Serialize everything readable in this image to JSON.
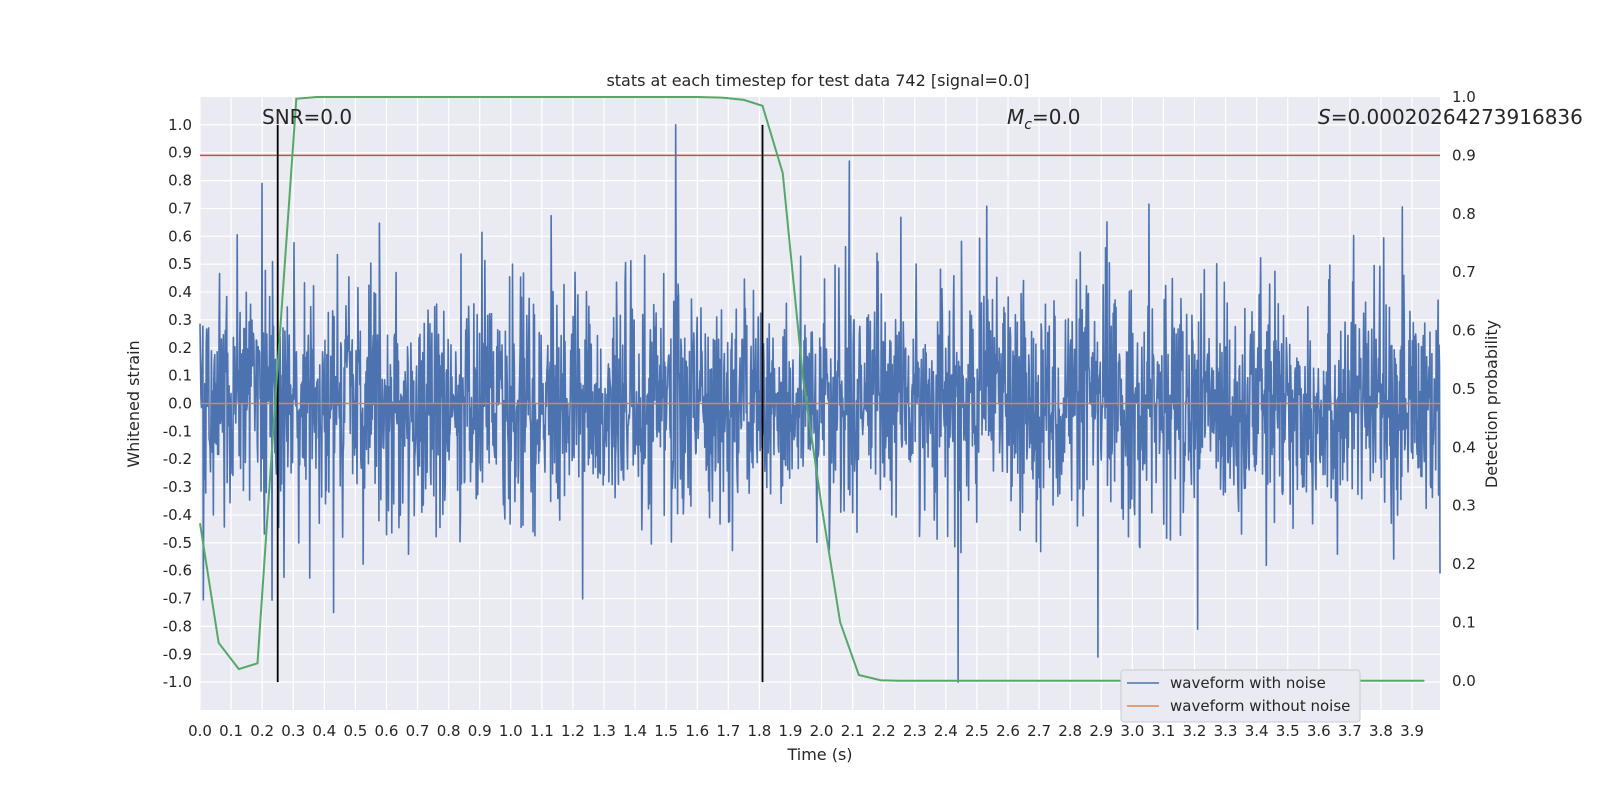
{
  "chart_data": {
    "type": "line",
    "title": "stats at each timestep for test data 742 [signal=0.0]",
    "xlabel": "Time (s)",
    "ylabel": "Whitened strain",
    "y2label": "Detection probability",
    "xlim": [
      0.0,
      3.99
    ],
    "ylim": [
      -1.1,
      1.1
    ],
    "y2lim": [
      -0.05,
      1.0
    ],
    "x_ticks": [
      "0.0",
      "0.1",
      "0.2",
      "0.3",
      "0.4",
      "0.5",
      "0.6",
      "0.7",
      "0.8",
      "0.9",
      "1.0",
      "1.1",
      "1.2",
      "1.3",
      "1.4",
      "1.5",
      "1.6",
      "1.7",
      "1.8",
      "1.9",
      "2.0",
      "2.1",
      "2.2",
      "2.3",
      "2.4",
      "2.5",
      "2.6",
      "2.7",
      "2.8",
      "2.9",
      "3.0",
      "3.1",
      "3.2",
      "3.3",
      "3.4",
      "3.5",
      "3.6",
      "3.7",
      "3.8",
      "3.9"
    ],
    "y_ticks": [
      "1.0",
      "0.9",
      "0.8",
      "0.7",
      "0.6",
      "0.5",
      "0.4",
      "0.3",
      "0.2",
      "0.1",
      "0.0",
      "-0.1",
      "-0.2",
      "-0.3",
      "-0.4",
      "-0.5",
      "-0.6",
      "-0.7",
      "-0.8",
      "-0.9",
      "-1.0"
    ],
    "y2_ticks": [
      "1.0",
      "0.9",
      "0.8",
      "0.7",
      "0.6",
      "0.5",
      "0.4",
      "0.3",
      "0.2",
      "0.1",
      "0.0"
    ],
    "grid": true,
    "legend_position": "lower-right",
    "annotations": {
      "snr": "SNR=0.0",
      "mc_symbol": "M",
      "mc_sub": "c",
      "mc_value": "=0.0",
      "s_symbol": "S",
      "s_value": "=0.00020264273916836"
    },
    "series": [
      {
        "name": "waveform with noise",
        "axis": "left",
        "color": "#4c72b0",
        "description": "noise-like whitened strain, amplitude mostly within ±0.5, peaks near 1.0 at t≈1.53 and -1.0 at t≈2.44",
        "peaks": [
          [
            0.2,
            0.79
          ],
          [
            1.53,
            1.0
          ],
          [
            2.09,
            0.87
          ],
          [
            2.44,
            -1.0
          ],
          [
            2.89,
            -0.91
          ],
          [
            3.21,
            -0.81
          ],
          [
            0.43,
            -0.75
          ],
          [
            3.99,
            -0.61
          ]
        ]
      },
      {
        "name": "waveform without noise",
        "axis": "left",
        "color": "#dd8452",
        "x": [
          0.0,
          3.99
        ],
        "y": [
          0.0,
          0.0
        ]
      },
      {
        "axis": "right",
        "color": "#55a868",
        "x": [
          0.0,
          0.06,
          0.125,
          0.185,
          0.25,
          0.31,
          0.375,
          0.5,
          1.0,
          1.5,
          1.6,
          1.68,
          1.75,
          1.81,
          1.875,
          1.94,
          2.0,
          2.06,
          2.12,
          2.19,
          2.25,
          2.5,
          3.0,
          3.5,
          3.94
        ],
        "y": [
          0.27,
          0.065,
          0.02,
          0.03,
          0.54,
          0.997,
          1.0,
          1.0,
          1.0,
          1.0,
          1.0,
          0.999,
          0.995,
          0.985,
          0.87,
          0.52,
          0.3,
          0.1,
          0.01,
          0.001,
          0.0,
          0.0,
          0.0,
          0.0,
          0.0
        ]
      }
    ],
    "threshold_line": {
      "axis": "right",
      "value": 0.9,
      "color": "#c44e52"
    },
    "vertical_lines": {
      "x": [
        0.25,
        1.81
      ],
      "color": "#000000",
      "ymin": -1.0,
      "ymax": 1.0
    }
  }
}
